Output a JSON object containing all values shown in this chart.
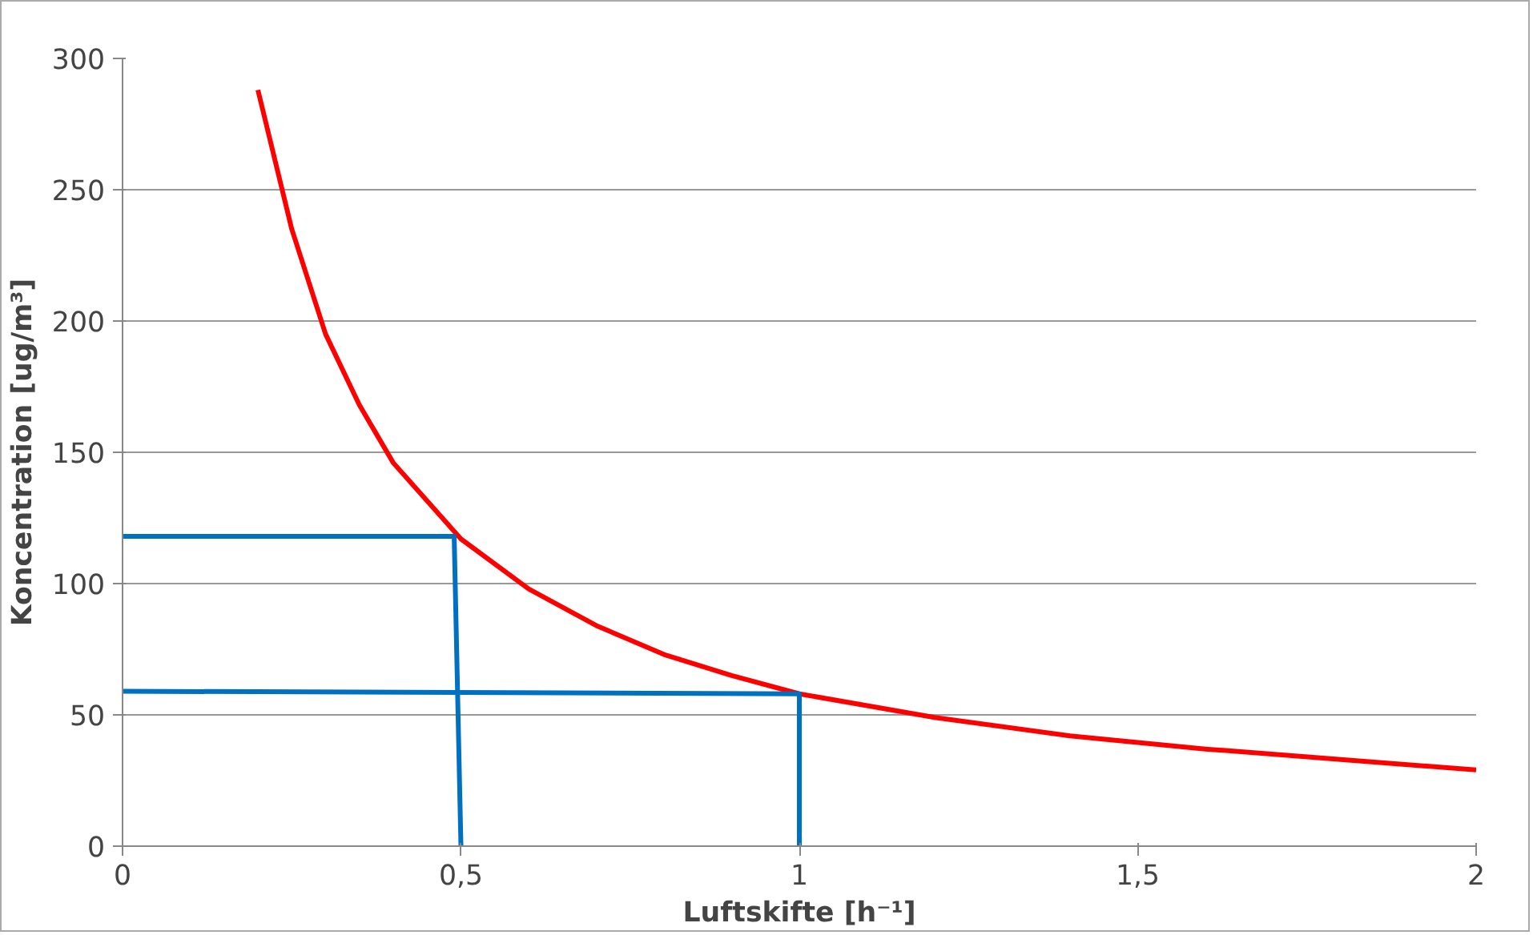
{
  "chart_data": {
    "type": "line",
    "xlabel": "Luftskifte [h⁻¹]",
    "ylabel": "Koncentration [ug/m³]",
    "xlim": [
      0,
      2
    ],
    "ylim": [
      0,
      300
    ],
    "xticks": [
      0,
      {
        "value": 0.5,
        "label": "0,5"
      },
      1,
      {
        "value": 1.5,
        "label": "1,5"
      },
      2
    ],
    "yticks": [
      0,
      50,
      100,
      150,
      200,
      250,
      300
    ],
    "grid": "y",
    "marker": "none",
    "line_style": "solid",
    "series": [
      {
        "color": "#ff0000",
        "x": [
          0.2,
          0.25,
          0.3,
          0.35,
          0.4,
          0.5,
          0.6,
          0.7,
          0.8,
          0.9,
          1,
          1.2,
          1.4,
          1.6,
          1.8,
          2
        ],
        "values": [
          288,
          235,
          195,
          168,
          146,
          117,
          98,
          84,
          73,
          65,
          58,
          49,
          42,
          37,
          33,
          29
        ]
      },
      {
        "color": "#0070c0",
        "x": [
          0,
          0.49,
          0.5
        ],
        "values": [
          118,
          118,
          0
        ]
      },
      {
        "color": "#0070c0",
        "x": [
          0,
          1,
          1
        ],
        "values": [
          59,
          58,
          0
        ]
      }
    ]
  }
}
